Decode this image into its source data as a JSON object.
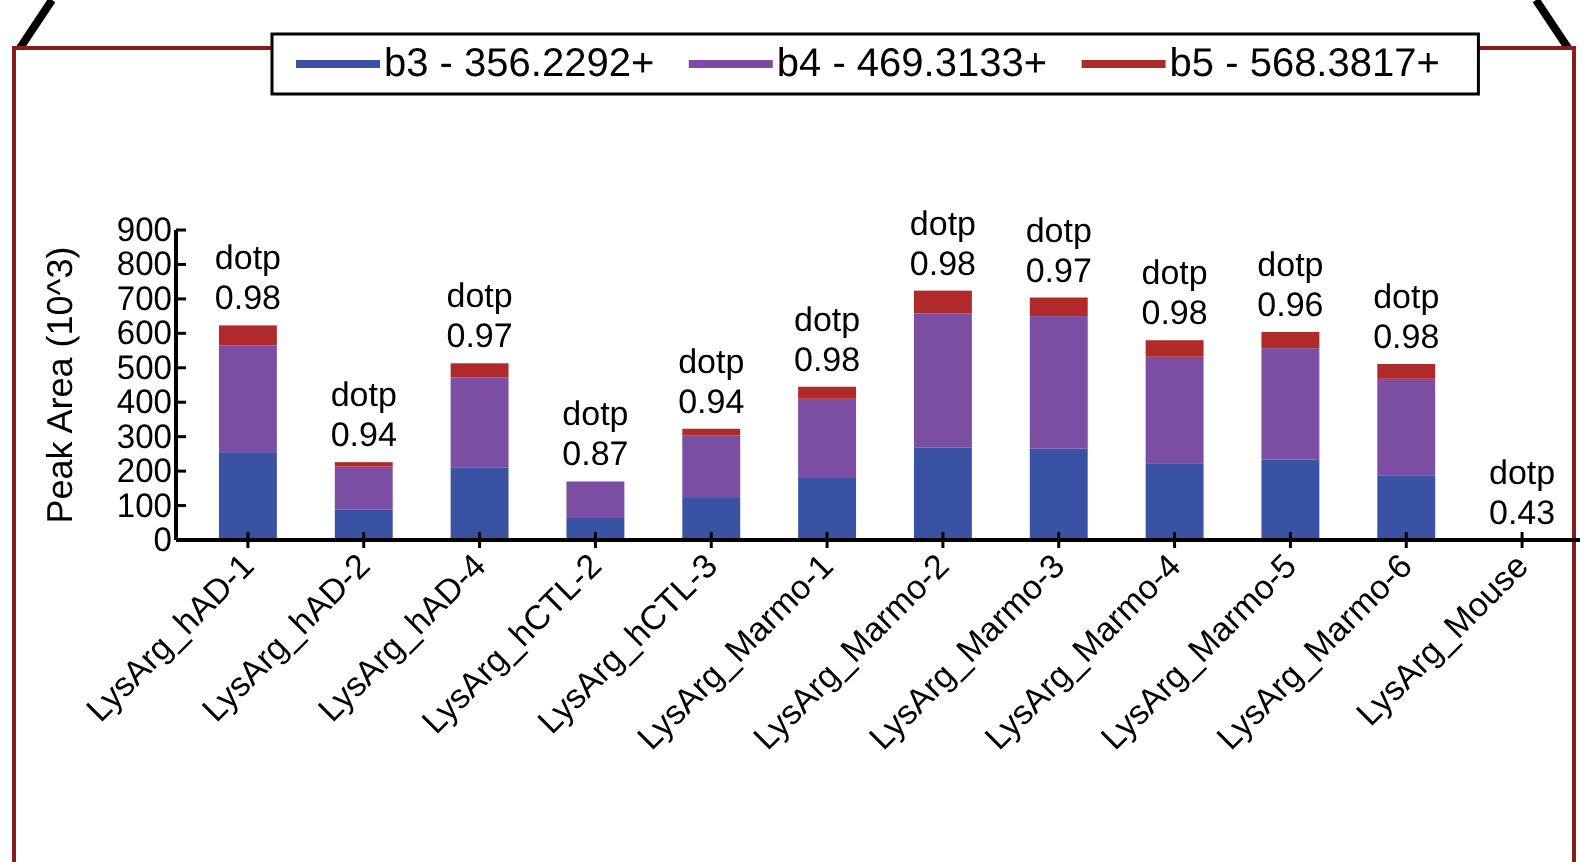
{
  "chart_data": {
    "type": "bar",
    "stacked": true,
    "ylabel": "Peak Area (10^3)",
    "categories": [
      "LysArg_hAD-1",
      "LysArg_hAD-2",
      "LysArg_hAD-4",
      "LysArg_hCTL-2",
      "LysArg_hCTL-3",
      "LysArg_Marmo-1",
      "LysArg_Marmo-2",
      "LysArg_Marmo-3",
      "LysArg_Marmo-4",
      "LysArg_Marmo-5",
      "LysArg_Marmo-6",
      "LysArg_Mouse"
    ],
    "series": [
      {
        "name": "b3 - 356.2292+",
        "color": "#3a52a4",
        "values": [
          255,
          89,
          211,
          64,
          122,
          180,
          269,
          265,
          221,
          234,
          188,
          0
        ]
      },
      {
        "name": "b4 - 469.3133+",
        "color": "#7b4ea3",
        "values": [
          310,
          124,
          261,
          106,
          182,
          230,
          389,
          385,
          311,
          323,
          280,
          0
        ]
      },
      {
        "name": "b5 - 568.3817+",
        "color": "#b02a2a",
        "values": [
          58,
          13,
          41,
          0,
          19,
          35,
          66,
          54,
          48,
          47,
          43,
          0
        ]
      }
    ],
    "ylim": [
      0,
      900
    ],
    "yticks": [
      0,
      100,
      200,
      300,
      400,
      500,
      600,
      700,
      800,
      900
    ],
    "grid": false,
    "legend": "top",
    "annotations": [
      {
        "text": "dotp 0.98",
        "x": "LysArg_hAD-1",
        "y": 623
      },
      {
        "text": "dotp 0.94",
        "x": "LysArg_hAD-2",
        "y": 226
      },
      {
        "text": "dotp 0.97",
        "x": "LysArg_hAD-4",
        "y": 513
      },
      {
        "text": "dotp 0.87",
        "x": "LysArg_hCTL-2",
        "y": 170
      },
      {
        "text": "dotp 0.94",
        "x": "LysArg_hCTL-3",
        "y": 323
      },
      {
        "text": "dotp 0.98",
        "x": "LysArg_Marmo-1",
        "y": 445
      },
      {
        "text": "dotp 0.98",
        "x": "LysArg_Marmo-2",
        "y": 724
      },
      {
        "text": "dotp 0.97",
        "x": "LysArg_Marmo-3",
        "y": 704
      },
      {
        "text": "dotp 0.98",
        "x": "LysArg_Marmo-4",
        "y": 580
      },
      {
        "text": "dotp 0.96",
        "x": "LysArg_Marmo-5",
        "y": 604
      },
      {
        "text": "dotp 0.98",
        "x": "LysArg_Marmo-6",
        "y": 511
      },
      {
        "text": "dotp 0.43",
        "x": "LysArg_Mouse",
        "y": 0
      }
    ]
  }
}
